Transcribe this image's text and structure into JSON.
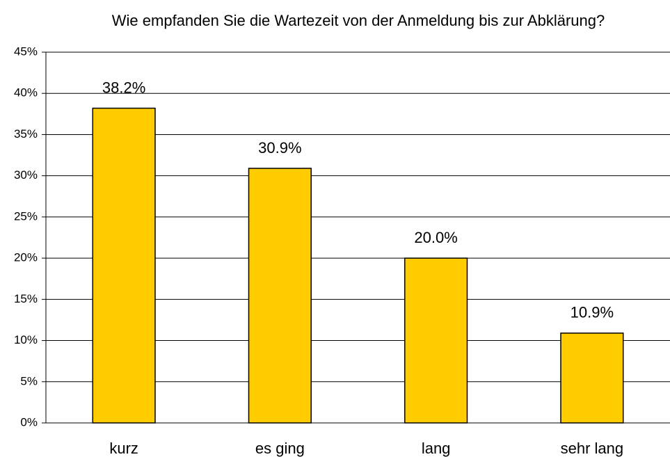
{
  "chart_data": {
    "type": "bar",
    "title": "Wie empfanden Sie die Wartezeit von der Anmeldung bis zur Abklärung?",
    "categories": [
      "kurz",
      "es ging",
      "lang",
      "sehr lang"
    ],
    "values": [
      38.2,
      30.9,
      20.0,
      10.9
    ],
    "value_labels": [
      "38.2%",
      "30.9%",
      "20.0%",
      "10.9%"
    ],
    "color": "#ffcc00",
    "ylim": [
      0,
      45
    ],
    "yticks": [
      {
        "value": 0,
        "label": "0%"
      },
      {
        "value": 5,
        "label": "5%"
      },
      {
        "value": 10,
        "label": "10%"
      },
      {
        "value": 15,
        "label": "15%"
      },
      {
        "value": 20,
        "label": "20%"
      },
      {
        "value": 25,
        "label": "25%"
      },
      {
        "value": 30,
        "label": "30%"
      },
      {
        "value": 35,
        "label": "35%"
      },
      {
        "value": 40,
        "label": "40%"
      },
      {
        "value": 45,
        "label": "45%"
      }
    ],
    "grid": true
  }
}
